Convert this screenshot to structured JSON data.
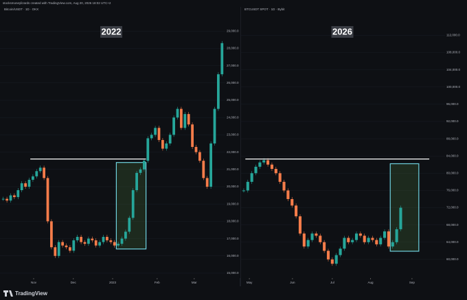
{
  "header": "stocksmoneylizards created with TradingView.com, Aug 20, 2026 18:02 UTC+2",
  "footer": "TradingView",
  "chart_data": [
    {
      "type": "candlestick",
      "title": "Bitcoin/USDT · 1D · OKX",
      "annotation": "2022",
      "up_color": "#26a69a",
      "down_color": "#f57c4a",
      "values": [
        19300,
        19200,
        19500,
        19400,
        19800,
        20200,
        20000,
        20400,
        20600,
        20900,
        21100,
        20500,
        18000,
        16500,
        16000,
        16800,
        16600,
        16500,
        16300,
        16900,
        17100,
        16800,
        16700,
        17000,
        16900,
        16600,
        16800,
        17100,
        16900,
        16800,
        16600,
        16700,
        17000,
        17400,
        18200,
        19800,
        20800,
        21000,
        21500,
        22800,
        23000,
        23400,
        22700,
        22200,
        22500,
        23000,
        24000,
        24500,
        23400,
        24200,
        23600,
        22300,
        22000,
        21500,
        20500,
        20000,
        22500,
        24500,
        26500,
        28300
      ],
      "xlim": [
        0,
        60
      ],
      "xticks": [
        {
          "value": 8.7,
          "label": "Nov"
        },
        {
          "value": 19.4,
          "label": "Dec"
        },
        {
          "value": 30,
          "label": "2023"
        },
        {
          "value": 42,
          "label": "Feb"
        },
        {
          "value": 52,
          "label": "Mar"
        }
      ],
      "ylim": [
        14800,
        30000
      ],
      "yticks": [
        {
          "value": 15000,
          "label": "15,000.0"
        },
        {
          "value": 16000,
          "label": "16,000.0"
        },
        {
          "value": 17000,
          "label": "17,000.0"
        },
        {
          "value": 18000,
          "label": "18,000.0"
        },
        {
          "value": 19000,
          "label": "19,000.0"
        },
        {
          "value": 20000,
          "label": "20,000.0"
        },
        {
          "value": 21000,
          "label": "21,000.0"
        },
        {
          "value": 22000,
          "label": "22,000.0"
        },
        {
          "value": 23000,
          "label": "23,000.0"
        },
        {
          "value": 24000,
          "label": "24,000.0"
        },
        {
          "value": 25000,
          "label": "25,000.0"
        },
        {
          "value": 26000,
          "label": "26,000.0"
        },
        {
          "value": 27000,
          "label": "27,000.0"
        },
        {
          "value": 28000,
          "label": "28,000.0"
        },
        {
          "value": 29000,
          "label": "29,000.0"
        }
      ],
      "level": 21600,
      "level_x": [
        7.8,
        39
      ],
      "box_x": [
        31,
        39
      ],
      "box_y": [
        16400,
        21400
      ]
    },
    {
      "type": "candlestick",
      "title": "BTCUSDT SPOT · 1D · Bybit",
      "annotation": "2026",
      "up_color": "#26a69a",
      "down_color": "#f57c4a",
      "values": [
        76000,
        78000,
        80000,
        81500,
        82500,
        83000,
        82000,
        81000,
        80000,
        78000,
        76000,
        74000,
        72500,
        70000,
        66000,
        63000,
        64500,
        66000,
        65500,
        64000,
        62000,
        60000,
        59000,
        61000,
        62500,
        65000,
        64000,
        64500,
        66000,
        65500,
        64000,
        65000,
        64500,
        63500,
        65000,
        66500,
        63000,
        64000,
        67000,
        72000
      ],
      "xlim": [
        0,
        50
      ],
      "xticks": [
        {
          "value": 1.9,
          "label": "May"
        },
        {
          "value": 12.6,
          "label": "Jun"
        },
        {
          "value": 22.5,
          "label": "Jul"
        },
        {
          "value": 32,
          "label": "Aug"
        },
        {
          "value": 42.3,
          "label": "Sep"
        }
      ],
      "ylim": [
        56000,
        117000
      ],
      "yticks": [
        {
          "value": 60000,
          "label": "60,000.0"
        },
        {
          "value": 64000,
          "label": "64,000.0"
        },
        {
          "value": 68000,
          "label": "68,000.0"
        },
        {
          "value": 72000,
          "label": "72,000.0"
        },
        {
          "value": 76000,
          "label": "76,000.0"
        },
        {
          "value": 80000,
          "label": "80,000.0"
        },
        {
          "value": 84000,
          "label": "84,000.0"
        },
        {
          "value": 88000,
          "label": "88,000.0"
        },
        {
          "value": 92000,
          "label": "92,000.0"
        },
        {
          "value": 96000,
          "label": "96,000.0"
        },
        {
          "value": 100000,
          "label": "100,000.0"
        },
        {
          "value": 104000,
          "label": "104,000.0"
        },
        {
          "value": 108000,
          "label": "108,000.0"
        },
        {
          "value": 112000,
          "label": "112,000.0"
        }
      ],
      "level": 83300,
      "level_x": [
        0.9,
        46.6
      ],
      "box_x": [
        36.9,
        44
      ],
      "box_y": [
        61900,
        82200
      ]
    }
  ]
}
